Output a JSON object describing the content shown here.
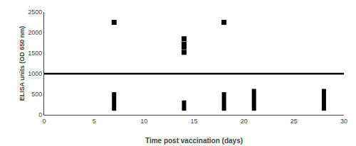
{
  "chart_data": {
    "type": "scatter",
    "xlabel": "Time post vaccination (days)",
    "ylabel": "ELISA units (OD 650 nm)",
    "xlim": [
      0,
      30
    ],
    "ylim": [
      0,
      2500
    ],
    "xticks": [
      0,
      5,
      10,
      15,
      20,
      25,
      30
    ],
    "yticks": [
      0,
      500,
      1000,
      1500,
      2000,
      2500
    ],
    "grid": false,
    "series": [
      {
        "type": "scatter",
        "marker": "square",
        "color": "black",
        "x": [
          7,
          14,
          14,
          14,
          14,
          18
        ],
        "values": [
          2250,
          1850,
          1720,
          1650,
          1520,
          2250
        ]
      },
      {
        "type": "range",
        "color": "black",
        "x": [
          7,
          14,
          18,
          21,
          28
        ],
        "low": [
          100,
          100,
          100,
          100,
          100
        ],
        "high": [
          550,
          350,
          550,
          630,
          630
        ]
      },
      {
        "type": "hline",
        "color": "black",
        "values": [
          1000
        ]
      }
    ]
  }
}
